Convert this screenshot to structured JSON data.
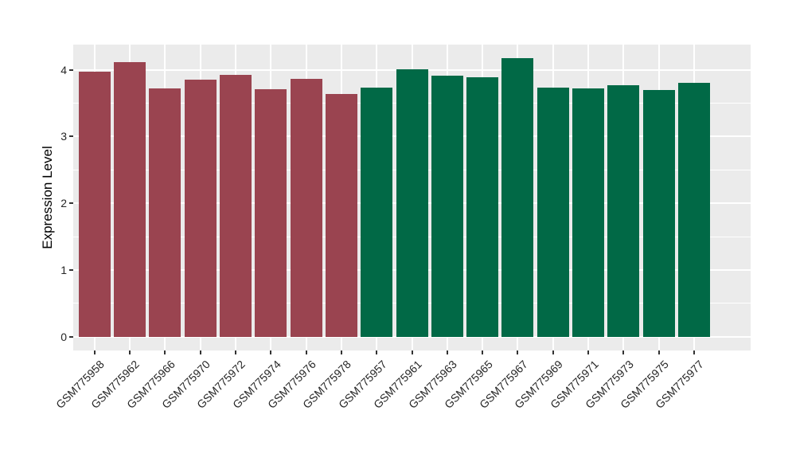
{
  "chart_data": {
    "type": "bar",
    "title": "",
    "xlabel": "",
    "ylabel": "Expression Level",
    "categories": [
      "GSM775958",
      "GSM775962",
      "GSM775966",
      "GSM775970",
      "GSM775972",
      "GSM775974",
      "GSM775976",
      "GSM775978",
      "GSM775957",
      "GSM775961",
      "GSM775963",
      "GSM775965",
      "GSM775967",
      "GSM775969",
      "GSM775971",
      "GSM775973",
      "GSM775975",
      "GSM775977"
    ],
    "values": [
      3.97,
      4.12,
      3.72,
      3.85,
      3.92,
      3.71,
      3.86,
      3.64,
      3.73,
      4.01,
      3.91,
      3.89,
      4.17,
      3.73,
      3.72,
      3.77,
      3.7,
      3.8
    ],
    "bar_colors": [
      "#9A4450",
      "#9A4450",
      "#9A4450",
      "#9A4450",
      "#9A4450",
      "#9A4450",
      "#9A4450",
      "#9A4450",
      "#016946",
      "#016946",
      "#016946",
      "#016946",
      "#016946",
      "#016946",
      "#016946",
      "#016946",
      "#016946",
      "#016946"
    ],
    "colors": {
      "group_1": "#9A4450",
      "group_2": "#016946"
    },
    "y_ticks": [
      0,
      1,
      2,
      3,
      4
    ],
    "y_minor_ticks": [
      0.5,
      1.5,
      2.5,
      3.5
    ],
    "ylim": [
      -0.21,
      4.38
    ],
    "bar_width_ratio": 0.9,
    "grid": true,
    "legend": "none",
    "panel_bg": "#EBEBEB",
    "grid_color": "#FFFFFF"
  }
}
